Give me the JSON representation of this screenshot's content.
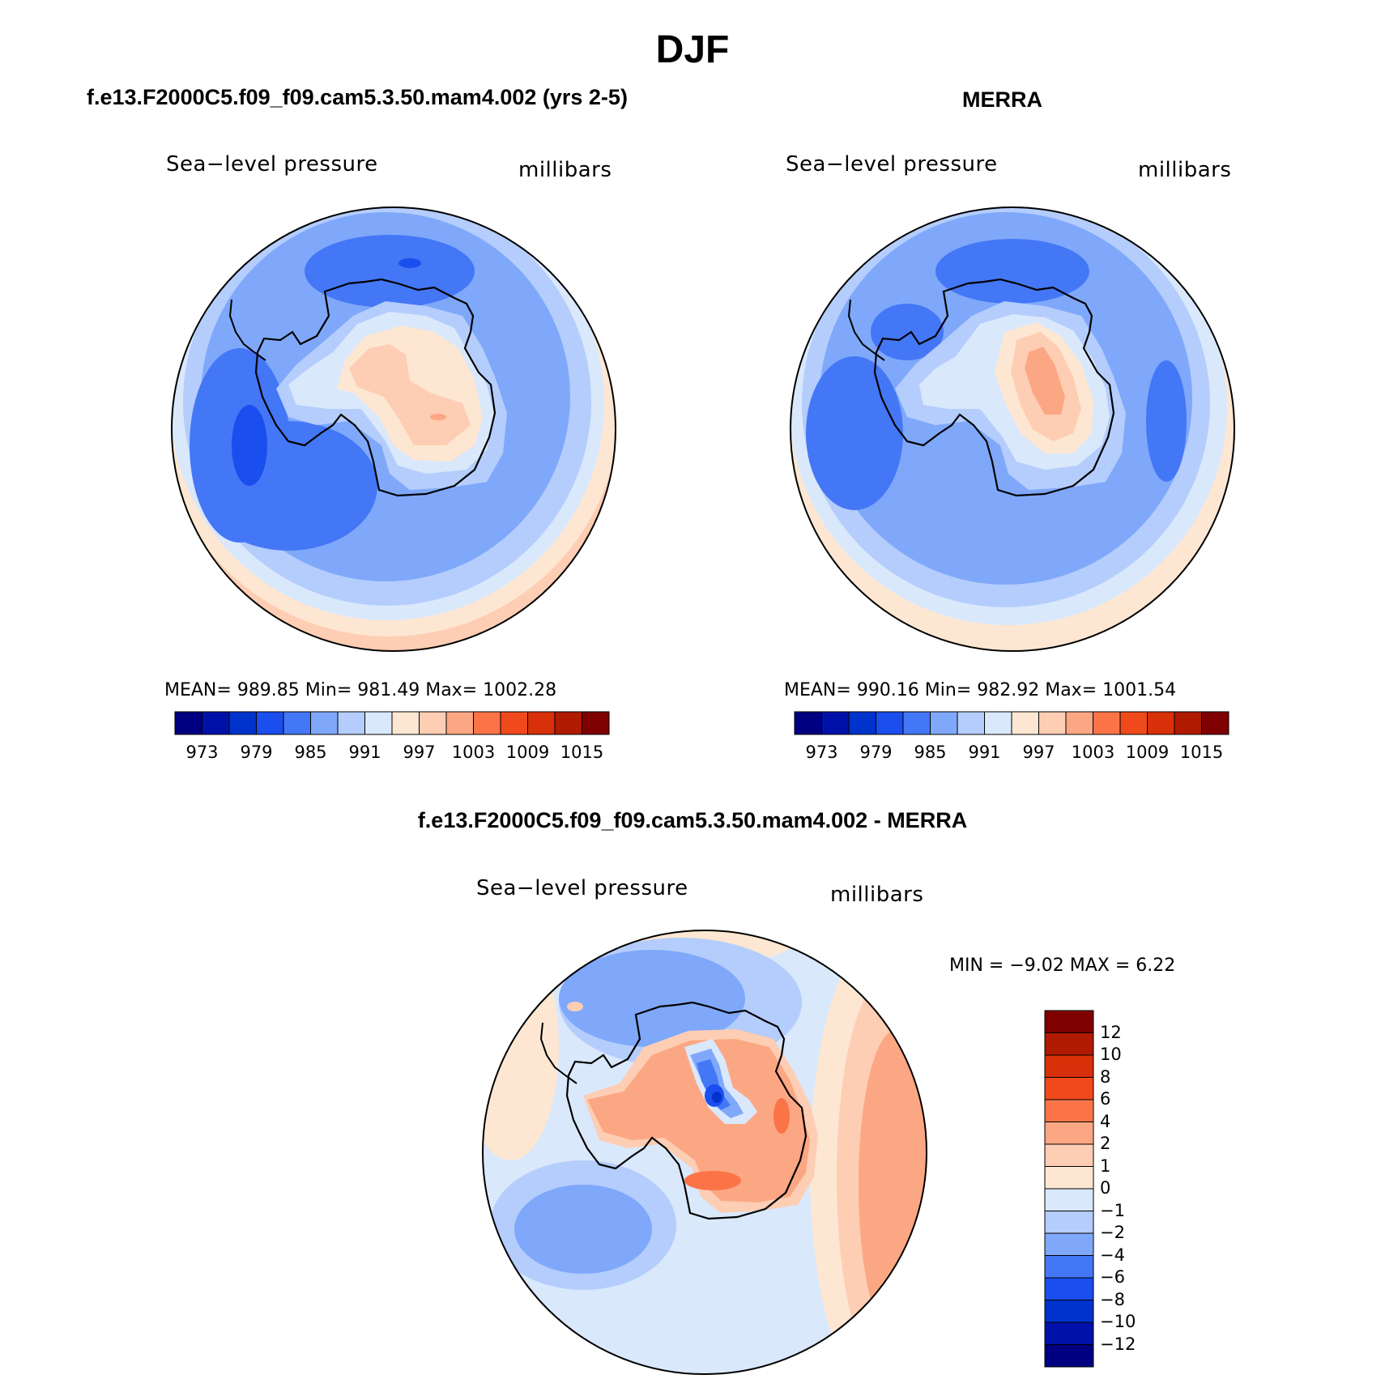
{
  "figure": {
    "title": "DJF"
  },
  "palette": {
    "levels_colors": [
      "#000080",
      "#0011aa",
      "#0033cc",
      "#1a4eee",
      "#4477f6",
      "#7fa8fa",
      "#b4cdfc",
      "#dae8fc",
      "#fde7d2",
      "#fdcdb4",
      "#fca784",
      "#fb7448",
      "#f04a1c",
      "#d83008",
      "#b01a00",
      "#7f0000"
    ]
  },
  "panels": {
    "model": {
      "title": "f.e13.F2000C5.f09_f09.cam5.3.50.mam4.002 (yrs 2-5)",
      "variable": "Sea−level pressure",
      "units": "millibars",
      "stats": "MEAN=  989.85    Min=  981.49    Max=  1002.28",
      "colorbar_labels": [
        "973",
        "979",
        "985",
        "991",
        "997",
        "1003",
        "1009",
        "1015"
      ]
    },
    "obs": {
      "title": "MERRA",
      "variable": "Sea−level pressure",
      "units": "millibars",
      "stats": "MEAN=  990.16    Min=  982.92    Max=  1001.54",
      "colorbar_labels": [
        "973",
        "979",
        "985",
        "991",
        "997",
        "1003",
        "1009",
        "1015"
      ]
    },
    "diff": {
      "title": "f.e13.F2000C5.f09_f09.cam5.3.50.mam4.002 - MERRA",
      "variable": "Sea−level pressure",
      "units": "millibars",
      "stats": "MIN =    −9.02  MAX =     6.22",
      "colorbar_labels": [
        "12",
        "10",
        "8",
        "6",
        "4",
        "2",
        "1",
        "0",
        "−1",
        "−2",
        "−4",
        "−6",
        "−8",
        "−10",
        "−12"
      ]
    }
  },
  "chart_data": [
    {
      "type": "heatmap",
      "title": "f.e13.F2000C5.f09_f09.cam5.3.50.mam4.002 (yrs 2-5)",
      "field": "Sea−level pressure",
      "units": "millibars",
      "projection": "south polar stereographic",
      "mean": 989.85,
      "min": 981.49,
      "max": 1002.28,
      "contour_levels": [
        973,
        976,
        979,
        982,
        985,
        988,
        991,
        994,
        997,
        1000,
        1003,
        1006,
        1009,
        1012,
        1015
      ]
    },
    {
      "type": "heatmap",
      "title": "MERRA",
      "field": "Sea−level pressure",
      "units": "millibars",
      "projection": "south polar stereographic",
      "mean": 990.16,
      "min": 982.92,
      "max": 1001.54,
      "contour_levels": [
        973,
        976,
        979,
        982,
        985,
        988,
        991,
        994,
        997,
        1000,
        1003,
        1006,
        1009,
        1012,
        1015
      ]
    },
    {
      "type": "heatmap",
      "title": "f.e13.F2000C5.f09_f09.cam5.3.50.mam4.002 - MERRA",
      "field": "Sea−level pressure",
      "units": "millibars",
      "projection": "south polar stereographic",
      "min": -9.02,
      "max": 6.22,
      "contour_levels": [
        -12,
        -10,
        -8,
        -6,
        -4,
        -2,
        -1,
        0,
        1,
        2,
        4,
        6,
        8,
        10,
        12
      ]
    }
  ]
}
